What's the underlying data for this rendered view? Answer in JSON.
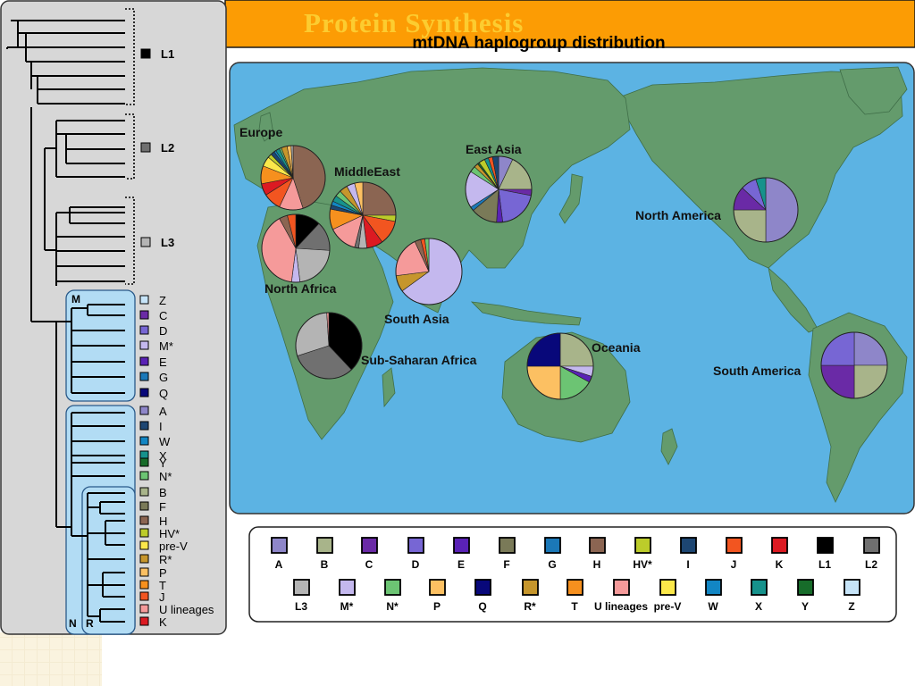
{
  "slide": {
    "banner_title": "Protein Synthesis",
    "heading": "mtDNA haplogroup distribution"
  },
  "colors": {
    "A": "#8e86c9",
    "B": "#a8b48a",
    "C": "#6a2aa6",
    "D": "#7766d4",
    "E": "#5a22b6",
    "F": "#7a7a58",
    "G": "#1b78b8",
    "H": "#8b6552",
    "HV*": "#bccc2a",
    "I": "#1d4672",
    "J": "#f25520",
    "K": "#dc1a22",
    "L1": "#000000",
    "L2": "#707070",
    "L3": "#b4b4b4",
    "M*": "#c4b8ee",
    "N*": "#6cc473",
    "P": "#fcc062",
    "Q": "#08087a",
    "R*": "#c6962c",
    "T": "#f6901e",
    "U lineages": "#f59a9a",
    "pre-V": "#fbe84a",
    "W": "#1286c4",
    "X": "#16928c",
    "Y": "#176c2a",
    "Z": "#c6e4f8"
  },
  "tree": {
    "L1_label": "L1",
    "L2_label": "L2",
    "L3_label": "L3",
    "M_label": "M",
    "N_label": "N",
    "R_label": "R",
    "tips": [
      {
        "key": "Z",
        "label": "Z"
      },
      {
        "key": "C",
        "label": "C"
      },
      {
        "key": "D",
        "label": "D"
      },
      {
        "key": "M*",
        "label": "M*"
      },
      {
        "key": "E",
        "label": "E"
      },
      {
        "key": "G",
        "label": "G"
      },
      {
        "key": "Q",
        "label": "Q"
      },
      {
        "key": "A",
        "label": "A"
      },
      {
        "key": "I",
        "label": "I"
      },
      {
        "key": "W",
        "label": "W"
      },
      {
        "key": "X",
        "label": "X"
      },
      {
        "key": "Y",
        "label": "Y"
      },
      {
        "key": "N*",
        "label": "N*"
      },
      {
        "key": "B",
        "label": "B"
      },
      {
        "key": "F",
        "label": "F"
      },
      {
        "key": "H",
        "label": "H"
      },
      {
        "key": "HV*",
        "label": "HV*"
      },
      {
        "key": "pre-V",
        "label": "pre-V"
      },
      {
        "key": "R*",
        "label": "R*"
      },
      {
        "key": "P",
        "label": "P"
      },
      {
        "key": "T",
        "label": "T"
      },
      {
        "key": "J",
        "label": "J"
      },
      {
        "key": "U lineages",
        "label": "U lineages"
      },
      {
        "key": "K",
        "label": "K"
      }
    ]
  },
  "regions": [
    {
      "name": "Europe",
      "slices": [
        {
          "h": "H",
          "v": 45
        },
        {
          "h": "U lineages",
          "v": 12
        },
        {
          "h": "J",
          "v": 9
        },
        {
          "h": "K",
          "v": 6
        },
        {
          "h": "T",
          "v": 9
        },
        {
          "h": "pre-V",
          "v": 5
        },
        {
          "h": "HV*",
          "v": 2
        },
        {
          "h": "I",
          "v": 2
        },
        {
          "h": "W",
          "v": 1
        },
        {
          "h": "X",
          "v": 2
        },
        {
          "h": "N*",
          "v": 1
        },
        {
          "h": "R*",
          "v": 3
        },
        {
          "h": "P",
          "v": 2
        },
        {
          "h": "L3",
          "v": 1
        }
      ]
    },
    {
      "name": "MiddleEast",
      "slices": [
        {
          "h": "H",
          "v": 25
        },
        {
          "h": "HV*",
          "v": 3
        },
        {
          "h": "J",
          "v": 12
        },
        {
          "h": "K",
          "v": 8
        },
        {
          "h": "L3",
          "v": 4
        },
        {
          "h": "L2",
          "v": 2
        },
        {
          "h": "U lineages",
          "v": 14
        },
        {
          "h": "T",
          "v": 10
        },
        {
          "h": "I",
          "v": 2
        },
        {
          "h": "W",
          "v": 2
        },
        {
          "h": "X",
          "v": 3
        },
        {
          "h": "N*",
          "v": 3
        },
        {
          "h": "R*",
          "v": 4
        },
        {
          "h": "M*",
          "v": 4
        },
        {
          "h": "P",
          "v": 4
        }
      ]
    },
    {
      "name": "North Africa",
      "slices": [
        {
          "h": "L1",
          "v": 12
        },
        {
          "h": "L2",
          "v": 14
        },
        {
          "h": "L3",
          "v": 22
        },
        {
          "h": "M*",
          "v": 4
        },
        {
          "h": "U lineages",
          "v": 40
        },
        {
          "h": "H",
          "v": 4
        },
        {
          "h": "J",
          "v": 4
        }
      ]
    },
    {
      "name": "East Asia",
      "slices": [
        {
          "h": "A",
          "v": 7
        },
        {
          "h": "B",
          "v": 18
        },
        {
          "h": "C",
          "v": 3
        },
        {
          "h": "D",
          "v": 20
        },
        {
          "h": "E",
          "v": 3
        },
        {
          "h": "F",
          "v": 13
        },
        {
          "h": "G",
          "v": 2
        },
        {
          "h": "M*",
          "v": 18
        },
        {
          "h": "N*",
          "v": 3
        },
        {
          "h": "R*",
          "v": 2
        },
        {
          "h": "Y",
          "v": 1
        },
        {
          "h": "HV*",
          "v": 3
        },
        {
          "h": "X",
          "v": 2
        },
        {
          "h": "J",
          "v": 2
        },
        {
          "h": "I",
          "v": 3
        }
      ]
    },
    {
      "name": "South Asia",
      "slices": [
        {
          "h": "M*",
          "v": 65
        },
        {
          "h": "R*",
          "v": 8
        },
        {
          "h": "U lineages",
          "v": 20
        },
        {
          "h": "H",
          "v": 3
        },
        {
          "h": "J",
          "v": 2
        },
        {
          "h": "N*",
          "v": 2
        }
      ]
    },
    {
      "name": "Sub-Saharan Africa",
      "slices": [
        {
          "h": "L1",
          "v": 38
        },
        {
          "h": "L2",
          "v": 32
        },
        {
          "h": "L3",
          "v": 29
        },
        {
          "h": "U lineages",
          "v": 1
        }
      ]
    },
    {
      "name": "Oceania",
      "slices": [
        {
          "h": "B",
          "v": 25
        },
        {
          "h": "M*",
          "v": 5
        },
        {
          "h": "E",
          "v": 3
        },
        {
          "h": "N*",
          "v": 17
        },
        {
          "h": "P",
          "v": 25
        },
        {
          "h": "Q",
          "v": 25
        }
      ]
    },
    {
      "name": "North America",
      "slices": [
        {
          "h": "A",
          "v": 50
        },
        {
          "h": "B",
          "v": 25
        },
        {
          "h": "C",
          "v": 12
        },
        {
          "h": "D",
          "v": 8
        },
        {
          "h": "X",
          "v": 5
        }
      ]
    },
    {
      "name": "South America",
      "slices": [
        {
          "h": "A",
          "v": 25
        },
        {
          "h": "B",
          "v": 25
        },
        {
          "h": "C",
          "v": 25
        },
        {
          "h": "D",
          "v": 25
        }
      ]
    }
  ],
  "legend": [
    {
      "key": "A",
      "label": "A"
    },
    {
      "key": "B",
      "label": "B"
    },
    {
      "key": "C",
      "label": "C"
    },
    {
      "key": "D",
      "label": "D"
    },
    {
      "key": "E",
      "label": "E"
    },
    {
      "key": "F",
      "label": "F"
    },
    {
      "key": "G",
      "label": "G"
    },
    {
      "key": "H",
      "label": "H"
    },
    {
      "key": "HV*",
      "label": "HV*"
    },
    {
      "key": "I",
      "label": "I"
    },
    {
      "key": "J",
      "label": "J"
    },
    {
      "key": "K",
      "label": "K"
    },
    {
      "key": "L1",
      "label": "L1"
    },
    {
      "key": "L2",
      "label": "L2"
    },
    {
      "key": "L3",
      "label": "L3"
    },
    {
      "key": "M*",
      "label": "M*"
    },
    {
      "key": "N*",
      "label": "N*"
    },
    {
      "key": "P",
      "label": "P"
    },
    {
      "key": "Q",
      "label": "Q"
    },
    {
      "key": "R*",
      "label": "R*"
    },
    {
      "key": "T",
      "label": "T"
    },
    {
      "key": "U lineages",
      "label": "U lineages"
    },
    {
      "key": "pre-V",
      "label": "pre-V"
    },
    {
      "key": "W",
      "label": "W"
    },
    {
      "key": "X",
      "label": "X"
    },
    {
      "key": "Y",
      "label": "Y"
    },
    {
      "key": "Z",
      "label": "Z"
    }
  ]
}
